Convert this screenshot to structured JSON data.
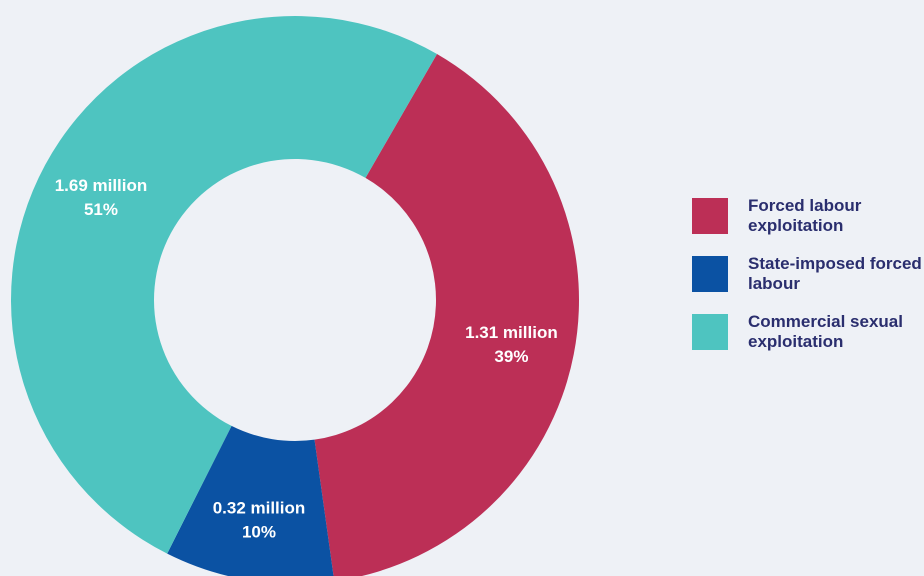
{
  "chart_data": {
    "type": "pie",
    "donut": true,
    "legend_position": "right",
    "slices": [
      {
        "name": "Forced labour exploitation",
        "value": 1.31,
        "value_label": "1.31 million",
        "percent": 39,
        "percent_label": "39%",
        "color": "#bc2f56"
      },
      {
        "name": "State-imposed forced labour",
        "value": 0.32,
        "value_label": "0.32 million",
        "percent": 10,
        "percent_label": "10%",
        "color": "#0b52a3"
      },
      {
        "name": "Commercial sexual exploitation",
        "value": 1.69,
        "value_label": "1.69 million",
        "percent": 51,
        "percent_label": "51%",
        "color": "#4ec4c0"
      }
    ]
  },
  "legend": {
    "items": [
      {
        "label": "Forced labour exploitation",
        "color": "#bc2f56"
      },
      {
        "label": "State-imposed forced labour",
        "color": "#0b52a3"
      },
      {
        "label": "Commercial sexual exploitation",
        "color": "#4ec4c0"
      }
    ]
  }
}
